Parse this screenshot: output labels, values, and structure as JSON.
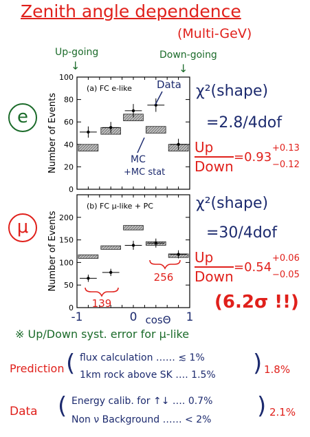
{
  "header": {
    "title": "Zenith angle dependence",
    "subtitle": "(Multi-GeV)",
    "up_going": "Up-going",
    "down_going": "Down-going"
  },
  "flavor_labels": {
    "e": "e",
    "mu": "μ"
  },
  "chi2": {
    "e_label": "χ²(shape)",
    "e_value": "=2.8/4dof",
    "mu_label": "χ²(shape)",
    "mu_value": "=30/4dof"
  },
  "ratios": {
    "up": "Up",
    "down": "Down",
    "e_value": "=0.93",
    "e_plus": "+0.13",
    "e_minus": "−0.12",
    "mu_value": "=0.54",
    "mu_plus": "+0.06",
    "mu_minus": "−0.05"
  },
  "significance": "(6.2σ !!)",
  "note": "※ Up/Down syst. error for μ-like",
  "prediction": {
    "label": "Prediction",
    "line1": "flux calculation …… ≲ 1%",
    "line2": "1km rock above SK …. 1.5%",
    "total": "1.8%"
  },
  "data_sys": {
    "label": "Data",
    "line1": "Energy calib. for ↑↓ …. 0.7%",
    "line2": "Non ν Background …… < 2%",
    "total": "2.1%"
  },
  "colors": {
    "handwriting_red": "#e0201b",
    "handwriting_green": "#1b6b2a",
    "handwriting_blue": "#1c2a6e",
    "mc_box_fill": "#bdbdbd"
  },
  "chart_data": [
    {
      "type": "scatter",
      "panel_label": "(a) FC e-like",
      "ylabel": "Number of Events",
      "xlim": [
        -1,
        1
      ],
      "ylim": [
        0,
        100
      ],
      "yticks": [
        "0",
        "20",
        "40",
        "60",
        "80",
        "100"
      ],
      "x_bins": [
        -0.8,
        -0.4,
        0.0,
        0.4,
        0.8
      ],
      "data": [
        51,
        55,
        70,
        75,
        40
      ],
      "data_err": [
        5,
        5,
        6,
        6,
        5
      ],
      "mc": [
        37,
        52,
        64,
        53,
        37
      ],
      "mc_err": [
        3,
        3,
        3,
        3,
        3
      ],
      "annotations": [
        "Data",
        "MC",
        "+MC stat"
      ]
    },
    {
      "type": "scatter",
      "panel_label": "(b) FC μ-like + PC",
      "ylabel": "Number of Events",
      "xlabel": "cosΘ",
      "xlim": [
        -1,
        1
      ],
      "ylim": [
        0,
        250
      ],
      "yticks": [
        "0",
        "50",
        "100",
        "150",
        "200"
      ],
      "xticks": [
        "-1",
        "0",
        "1"
      ],
      "x_bins": [
        -0.8,
        -0.4,
        0.0,
        0.4,
        0.8
      ],
      "data": [
        65,
        78,
        138,
        143,
        118
      ],
      "data_err": [
        8,
        8,
        10,
        10,
        9
      ],
      "mc": [
        113,
        133,
        177,
        142,
        115
      ],
      "mc_err": [
        4,
        4,
        5,
        4,
        4
      ],
      "annotations": [
        "139",
        "256"
      ]
    }
  ]
}
